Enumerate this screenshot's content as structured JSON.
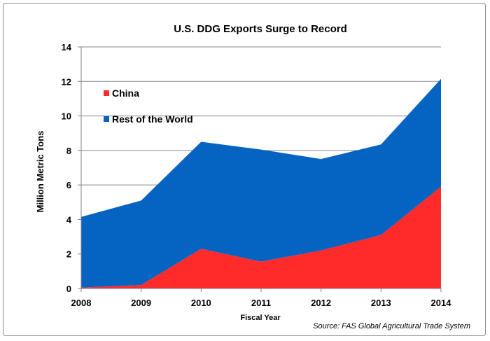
{
  "chart_data": {
    "type": "area",
    "stacked": true,
    "title": "U.S. DDG Exports Surge to Record",
    "xlabel": "Fiscal Year",
    "ylabel": "Million Metric Tons",
    "categories": [
      "2008",
      "2009",
      "2010",
      "2011",
      "2012",
      "2013",
      "2014"
    ],
    "ylim": [
      0,
      14
    ],
    "yticks": [
      0,
      2,
      4,
      6,
      8,
      10,
      12,
      14
    ],
    "grid": true,
    "legend_position": "top-left",
    "series": [
      {
        "name": "China",
        "color": "#ff2a2a",
        "values": [
          0.05,
          0.2,
          2.3,
          1.55,
          2.2,
          3.1,
          5.9
        ]
      },
      {
        "name": "Rest of the World",
        "color": "#0563c1",
        "values": [
          4.1,
          4.9,
          6.2,
          6.5,
          5.3,
          5.25,
          6.25
        ]
      }
    ],
    "source": "Source: FAS Global Agricultural Trade System"
  }
}
